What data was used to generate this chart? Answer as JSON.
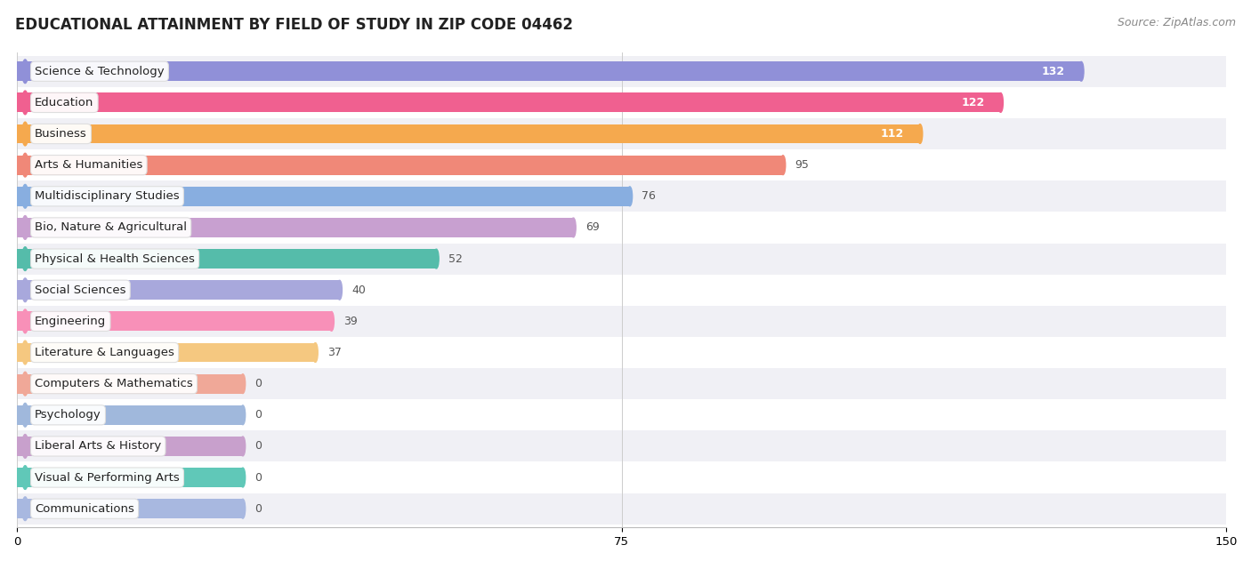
{
  "title": "EDUCATIONAL ATTAINMENT BY FIELD OF STUDY IN ZIP CODE 04462",
  "source": "Source: ZipAtlas.com",
  "categories": [
    "Science & Technology",
    "Education",
    "Business",
    "Arts & Humanities",
    "Multidisciplinary Studies",
    "Bio, Nature & Agricultural",
    "Physical & Health Sciences",
    "Social Sciences",
    "Engineering",
    "Literature & Languages",
    "Computers & Mathematics",
    "Psychology",
    "Liberal Arts & History",
    "Visual & Performing Arts",
    "Communications"
  ],
  "values": [
    132,
    122,
    112,
    95,
    76,
    69,
    52,
    40,
    39,
    37,
    0,
    0,
    0,
    0,
    0
  ],
  "bar_colors": [
    "#9090d8",
    "#f06090",
    "#f5a94e",
    "#f08878",
    "#88aee0",
    "#c8a0d0",
    "#55bcaa",
    "#a8a8dc",
    "#f890b8",
    "#f5c880",
    "#f0a898",
    "#a0b8dc",
    "#c8a0cc",
    "#60c8b8",
    "#a8b8e0"
  ],
  "label_colors": {
    "inside": "#ffffff",
    "outside": "#555555"
  },
  "inside_threshold": 95,
  "xlim": [
    0,
    150
  ],
  "xticks": [
    0,
    75,
    150
  ],
  "background_color": "#ffffff",
  "row_bg_even": "#f0f0f5",
  "row_bg_odd": "#ffffff",
  "title_fontsize": 12,
  "label_fontsize": 9.5,
  "value_fontsize": 9,
  "source_fontsize": 9,
  "bar_height": 0.62,
  "min_bar_display": 28
}
